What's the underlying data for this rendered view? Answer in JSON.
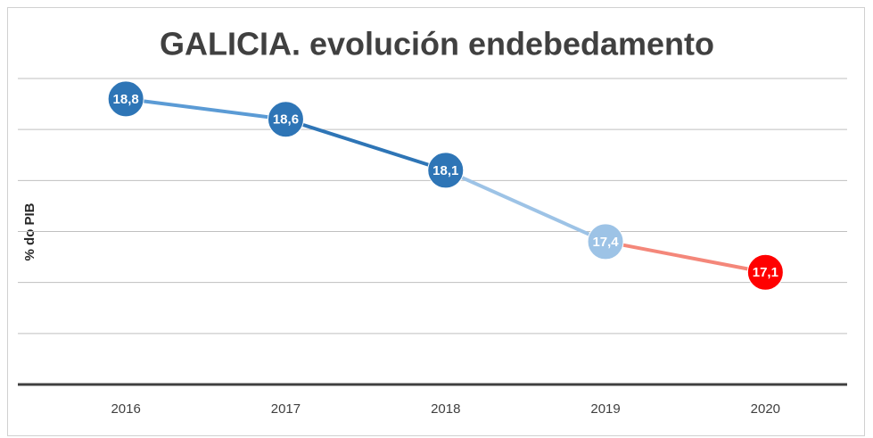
{
  "chart_data": {
    "type": "line",
    "title": "GALICIA. evolución endebedamento",
    "y_label": "% do PIB",
    "categories": [
      "2016",
      "2017",
      "2018",
      "2019",
      "2020"
    ],
    "values": [
      18.8,
      18.6,
      18.1,
      17.4,
      17.1
    ],
    "value_labels": [
      "18,8",
      "18,6",
      "18,1",
      "17,4",
      "17,1"
    ],
    "colors": [
      "#2e75b6",
      "#2e75b6",
      "#2e75b6",
      "#9dc3e6",
      "#ff0000"
    ],
    "segment_colors": [
      "#5b9bd5",
      "#2e75b6",
      "#9dc3e6",
      "#f4877a"
    ],
    "ylim": [
      16,
      19
    ],
    "yticks": [
      16,
      16.5,
      17,
      17.5,
      18,
      18.5,
      19
    ],
    "grid": true
  }
}
